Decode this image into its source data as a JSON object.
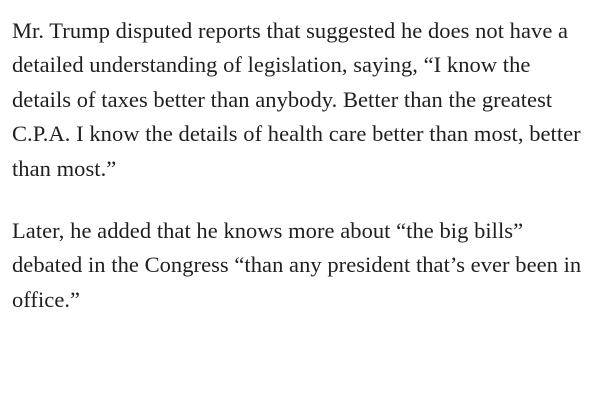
{
  "article": {
    "paragraphs": [
      "Mr. Trump disputed reports that suggested he does not have a detailed understanding of legislation, saying, “I know the details of taxes better than anybody. Better than the greatest C.P.A. I know the details of health care better than most, better than most.”",
      "Later, he added that he knows more about “the big bills” debated in the Congress “than any president that’s ever been in office.”"
    ]
  }
}
